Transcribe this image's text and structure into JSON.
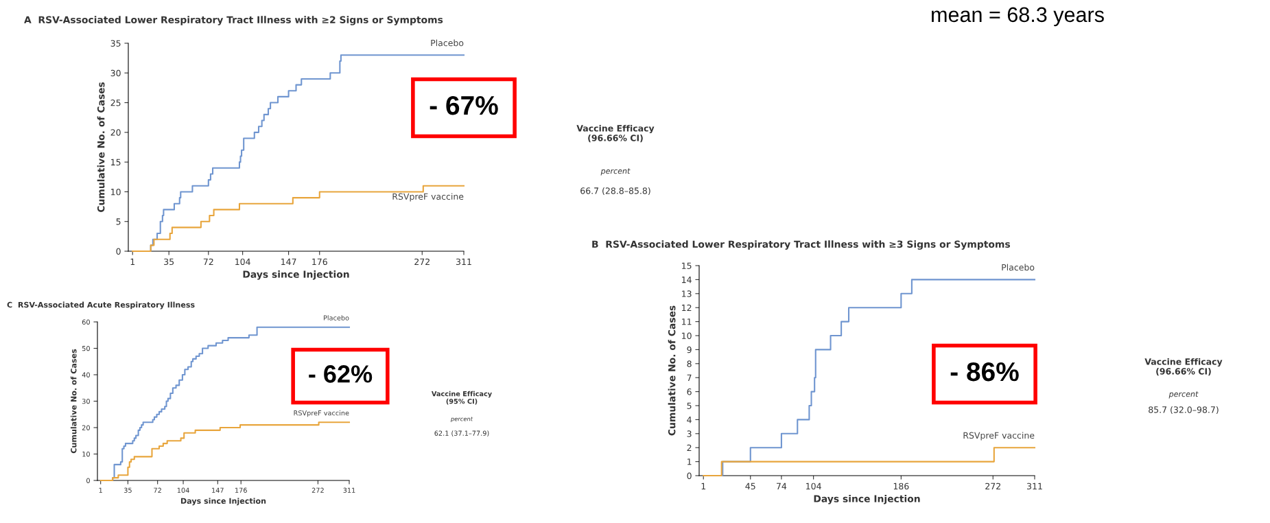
{
  "chart_data": [
    {
      "type": "step",
      "title": "A  RSV-Associated Lower Respiratory Tract Illness with ≥2 Signs or Symptoms",
      "xlabel": "Days since Injection",
      "ylabel": "Cumulative No. of Cases",
      "xlim": [
        -3,
        311
      ],
      "xticks": [
        1,
        35,
        72,
        104,
        147,
        176,
        272,
        311
      ],
      "ylim": [
        0,
        35
      ],
      "yticks": [
        0,
        5,
        10,
        15,
        20,
        25,
        30,
        35
      ],
      "series": [
        {
          "name": "Placebo",
          "color": "#6f95d0",
          "x": [
            1,
            18,
            20,
            24,
            27,
            29,
            30,
            40,
            45,
            46,
            57,
            72,
            74,
            76,
            101,
            102,
            103,
            105,
            115,
            119,
            122,
            124,
            128,
            130,
            137,
            147,
            154,
            159,
            186,
            195,
            196,
            311
          ],
          "values": [
            0,
            1,
            2,
            3,
            5,
            6,
            7,
            8,
            9,
            10,
            11,
            12,
            13,
            14,
            15,
            16,
            17,
            19,
            20,
            21,
            22,
            23,
            24,
            25,
            26,
            27,
            28,
            29,
            30,
            32,
            33,
            33
          ]
        },
        {
          "name": "RSVpreF vaccine",
          "color": "#e8a53c",
          "x": [
            1,
            18,
            21,
            36,
            38,
            65,
            73,
            77,
            101,
            151,
            176,
            273,
            311
          ],
          "values": [
            0,
            1,
            2,
            3,
            4,
            5,
            6,
            7,
            8,
            9,
            10,
            11,
            11
          ]
        }
      ],
      "annotations": [
        "- 67%",
        "Vaccine Efficacy\n(96.66% CI)",
        "percent",
        "66.7 (28.8–85.8)",
        "mean = 68.3 years"
      ]
    },
    {
      "type": "step",
      "title": "B  RSV-Associated Lower Respiratory Tract Illness with ≥3 Signs or Symptoms",
      "xlabel": "Days since Injection",
      "ylabel": "Cumulative No. of Cases",
      "xlim": [
        -3,
        311
      ],
      "xticks": [
        1,
        45,
        74,
        104,
        186,
        272,
        311
      ],
      "ylim": [
        0,
        15
      ],
      "yticks": [
        0,
        1,
        2,
        3,
        4,
        5,
        6,
        7,
        8,
        9,
        10,
        11,
        12,
        13,
        14,
        15
      ],
      "series": [
        {
          "name": "Placebo",
          "color": "#6f95d0",
          "x": [
            1,
            19,
            45,
            74,
            89,
            100,
            102,
            105,
            106,
            120,
            130,
            137,
            186,
            196,
            311
          ],
          "values": [
            0,
            1,
            2,
            3,
            4,
            5,
            6,
            7,
            9,
            10,
            11,
            12,
            13,
            14,
            14
          ]
        },
        {
          "name": "RSVpreF vaccine",
          "color": "#e8a53c",
          "x": [
            1,
            18,
            273,
            311
          ],
          "values": [
            0,
            1,
            2,
            2
          ]
        }
      ],
      "annotations": [
        "- 86%",
        "Vaccine Efficacy\n(96.66% CI)",
        "percent",
        "85.7 (32.0–98.7)"
      ]
    },
    {
      "type": "step",
      "title": "C  RSV-Associated Acute Respiratory Illness",
      "xlabel": "Days since Injection",
      "ylabel": "Cumulative No. of Cases",
      "xlim": [
        -3,
        311
      ],
      "xticks": [
        1,
        35,
        72,
        104,
        147,
        176,
        272,
        311
      ],
      "ylim": [
        0,
        60
      ],
      "yticks": [
        0,
        10,
        20,
        30,
        40,
        50,
        60
      ],
      "series": [
        {
          "name": "Placebo",
          "color": "#6f95d0",
          "x": [
            1,
            16,
            18,
            26,
            28,
            30,
            32,
            41,
            43,
            45,
            48,
            50,
            52,
            54,
            66,
            68,
            71,
            74,
            77,
            81,
            83,
            85,
            88,
            91,
            95,
            99,
            103,
            106,
            110,
            114,
            116,
            120,
            124,
            128,
            135,
            145,
            153,
            160,
            186,
            196,
            311
          ],
          "values": [
            0,
            1,
            6,
            7,
            12,
            13,
            14,
            15,
            16,
            17,
            19,
            20,
            21,
            22,
            23,
            24,
            25,
            26,
            27,
            28,
            30,
            31,
            33,
            35,
            36,
            38,
            40,
            42,
            43,
            45,
            46,
            47,
            48,
            50,
            51,
            52,
            53,
            54,
            55,
            58,
            58
          ]
        },
        {
          "name": "RSVpreF vaccine",
          "color": "#e8a53c",
          "x": [
            1,
            16,
            23,
            35,
            37,
            39,
            43,
            65,
            74,
            79,
            84,
            101,
            105,
            119,
            150,
            175,
            273,
            311
          ],
          "values": [
            0,
            1,
            2,
            5,
            7,
            8,
            9,
            12,
            13,
            14,
            15,
            16,
            18,
            19,
            20,
            21,
            22,
            22
          ]
        }
      ],
      "annotations": [
        "- 62%",
        "Vaccine Efficacy\n(95% CI)",
        "percent",
        "62.1 (37.1–77.9)"
      ]
    }
  ]
}
